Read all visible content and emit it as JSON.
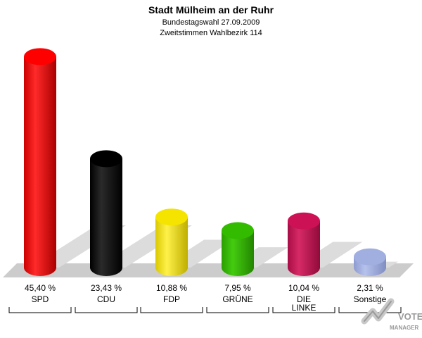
{
  "header": {
    "title": "Stadt Mülheim an der Ruhr",
    "subtitle1": "Bundestagswahl 27.09.2009",
    "subtitle2": "Zweitstimmen Wahlbezirk 114"
  },
  "logo": {
    "line1": "VOTE",
    "line2": "MANAGER",
    "icon": "check-mark-icon"
  },
  "chart_data": {
    "type": "bar",
    "title": "Stadt Mülheim an der Ruhr",
    "subtitle": "Bundestagswahl 27.09.2009 — Zweitstimmen Wahlbezirk 114",
    "xlabel": "",
    "ylabel": "",
    "ylim": [
      0,
      50
    ],
    "grid": false,
    "legend": "none",
    "categories": [
      "SPD",
      "CDU",
      "FDP",
      "GRÜNE",
      "DIE LINKE",
      "Sonstige"
    ],
    "category_lines": [
      [
        "SPD"
      ],
      [
        "CDU"
      ],
      [
        "FDP"
      ],
      [
        "GRÜNE"
      ],
      [
        "DIE",
        "LINKE"
      ],
      [
        "Sonstige"
      ]
    ],
    "values": [
      45.4,
      23.43,
      10.88,
      7.95,
      10.04,
      2.31
    ],
    "value_labels": [
      "45,40 %",
      "23,43 %",
      "10,88 %",
      "7,95 %",
      "10,04 %",
      "2,31 %"
    ],
    "colors": [
      "#ff0000",
      "#000000",
      "#f5e400",
      "#33bb00",
      "#cc1155",
      "#a0aee0"
    ]
  }
}
